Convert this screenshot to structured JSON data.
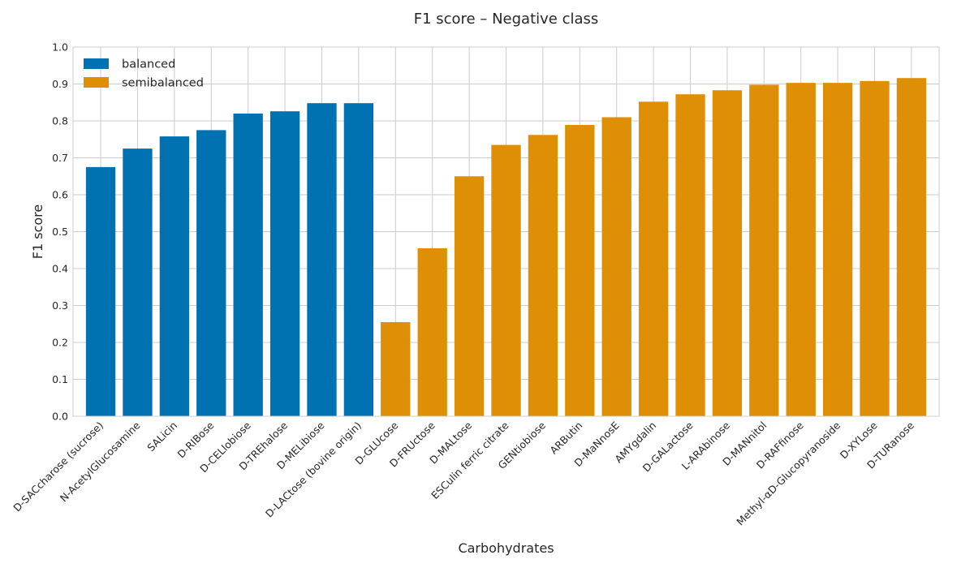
{
  "chart_data": {
    "type": "bar",
    "title": "F1 score – Negative class",
    "xlabel": "Carbohydrates",
    "ylabel": "F1 score",
    "ylim": [
      0,
      1.0
    ],
    "yticks": [
      0.0,
      0.1,
      0.2,
      0.3,
      0.4,
      0.5,
      0.6,
      0.7,
      0.8,
      0.9,
      1.0
    ],
    "grid": true,
    "legend_position": "top-left",
    "categories": [
      "D-SACcharose (sucrose)",
      "N-AcetylGlucosamine",
      "SALicin",
      "D-RIBose",
      "D-CELlobiose",
      "D-TREhalose",
      "D-MELibiose",
      "D-LACtose (bovine origin)",
      "D-GLUcose",
      "D-FRUctose",
      "D-MALtose",
      "ESCulin ferric citrate",
      "GENtiobiose",
      "ARButin",
      "D-MaNnosE",
      "AMYgdalin",
      "D-GALactose",
      "L-ARAbinose",
      "D-MANnitol",
      "D-RAFfinose",
      "Methyl-αD-Glucopyranoside",
      "D-XYLose",
      "D-TURanose"
    ],
    "values": [
      0.675,
      0.725,
      0.758,
      0.775,
      0.82,
      0.826,
      0.848,
      0.848,
      0.255,
      0.455,
      0.65,
      0.735,
      0.762,
      0.789,
      0.81,
      0.852,
      0.872,
      0.883,
      0.898,
      0.903,
      0.903,
      0.908,
      0.916
    ],
    "groups": [
      "balanced",
      "balanced",
      "balanced",
      "balanced",
      "balanced",
      "balanced",
      "balanced",
      "balanced",
      "semibalanced",
      "semibalanced",
      "semibalanced",
      "semibalanced",
      "semibalanced",
      "semibalanced",
      "semibalanced",
      "semibalanced",
      "semibalanced",
      "semibalanced",
      "semibalanced",
      "semibalanced",
      "semibalanced",
      "semibalanced",
      "semibalanced"
    ],
    "series": [
      {
        "name": "balanced",
        "color": "#0072b2"
      },
      {
        "name": "semibalanced",
        "color": "#de8f05"
      }
    ]
  }
}
